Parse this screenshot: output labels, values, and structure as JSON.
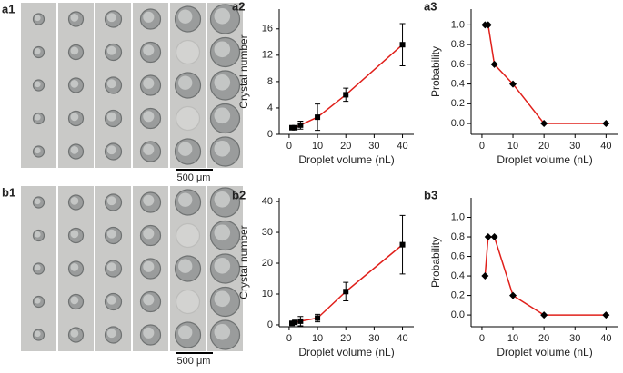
{
  "images": [
    {
      "label": "a1",
      "scale_bar": "500 μm"
    },
    {
      "label": "b1",
      "scale_bar": "500 μm"
    }
  ],
  "chart_data": [
    {
      "type": "line",
      "panel": "a2",
      "xlabel": "Droplet volume (nL)",
      "ylabel": "Crystal number",
      "x": [
        1,
        2,
        4,
        10,
        20,
        40
      ],
      "values": [
        1.0,
        1.0,
        1.4,
        2.6,
        6.0,
        13.6
      ],
      "errors": [
        0.2,
        0.2,
        0.6,
        2.0,
        1.0,
        3.2
      ],
      "color": "#e0201b",
      "marker": "square",
      "xlim": [
        -3.5,
        44
      ],
      "xticks": [
        0,
        10,
        20,
        30,
        40
      ],
      "ylim": [
        0,
        19
      ],
      "yticks": [
        0,
        4,
        8,
        12,
        16
      ]
    },
    {
      "type": "line",
      "panel": "a3",
      "xlabel": "Droplet volume (nL)",
      "ylabel": "Probability",
      "x": [
        1,
        2,
        4,
        10,
        20,
        40
      ],
      "values": [
        1.0,
        1.0,
        0.6,
        0.4,
        0.0,
        0.0
      ],
      "color": "#e0201b",
      "marker": "diamond",
      "xlim": [
        -3.5,
        44
      ],
      "xticks": [
        0,
        10,
        20,
        30,
        40
      ],
      "ylim": [
        -0.11,
        1.16
      ],
      "yticks": [
        {
          "value": 0,
          "label": "0.0"
        },
        {
          "value": 0.2,
          "label": "0.2"
        },
        {
          "value": 0.4,
          "label": "0.4"
        },
        {
          "value": 0.6,
          "label": "0.6"
        },
        {
          "value": 0.8,
          "label": "0.8"
        },
        {
          "value": 1,
          "label": "1.0"
        }
      ]
    },
    {
      "type": "line",
      "panel": "b2",
      "xlabel": "Droplet volume (nL)",
      "ylabel": "Crystal number",
      "x": [
        1,
        2,
        4,
        10,
        20,
        40
      ],
      "values": [
        0.5,
        0.8,
        1.2,
        2.2,
        10.8,
        26.0
      ],
      "errors": [
        0.3,
        0.5,
        1.5,
        1.2,
        3.0,
        9.5
      ],
      "color": "#e0201b",
      "marker": "square",
      "xlim": [
        -3.5,
        44
      ],
      "xticks": [
        0,
        10,
        20,
        30,
        40
      ],
      "ylim": [
        -0.6,
        41.2
      ],
      "yticks": [
        0,
        10,
        20,
        30,
        40
      ]
    },
    {
      "type": "line",
      "panel": "b3",
      "xlabel": "Droplet volume (nL)",
      "ylabel": "Probability",
      "x": [
        1,
        2,
        4,
        10,
        20,
        40
      ],
      "values": [
        0.4,
        0.8,
        0.8,
        0.2,
        0.0,
        0.0
      ],
      "color": "#e0201b",
      "marker": "diamond",
      "xlim": [
        -3.5,
        44
      ],
      "xticks": [
        0,
        10,
        20,
        30,
        40
      ],
      "ylim": [
        -0.12,
        1.2
      ],
      "yticks": [
        {
          "value": 0,
          "label": "0.0"
        },
        {
          "value": 0.2,
          "label": "0.2"
        },
        {
          "value": 0.4,
          "label": "0.4"
        },
        {
          "value": 0.6,
          "label": "0.6"
        },
        {
          "value": 0.8,
          "label": "0.8"
        },
        {
          "value": 1,
          "label": "1.0"
        }
      ]
    }
  ]
}
